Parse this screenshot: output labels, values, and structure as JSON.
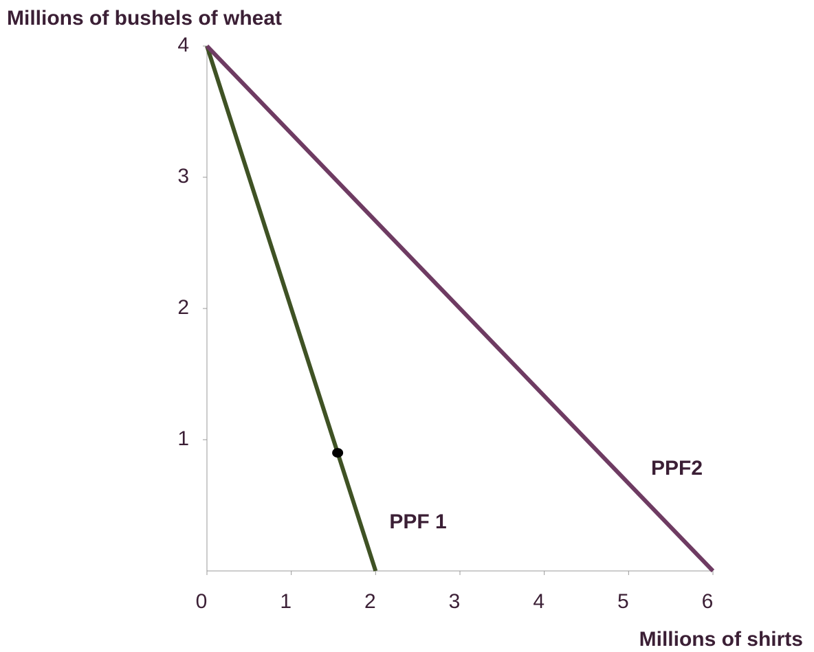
{
  "chart_data": {
    "type": "line",
    "x_label": "Millions of shirts",
    "y_label": "Millions of bushels of wheat",
    "series": [
      {
        "name": "PPF 1",
        "color": "#3f5224",
        "x": [
          0,
          2
        ],
        "values": [
          4,
          0
        ]
      },
      {
        "name": "PPF2",
        "color": "#6e3b62",
        "x": [
          0,
          6
        ],
        "values": [
          4,
          0
        ]
      }
    ],
    "points": [
      {
        "x": 1.55,
        "y": 0.9,
        "color": "#000000"
      }
    ],
    "xlim": [
      0,
      6
    ],
    "xticks": [
      0,
      1,
      2,
      3,
      4,
      5,
      6
    ],
    "ylim": [
      0,
      4
    ],
    "yticks": [
      1,
      2,
      3,
      4
    ],
    "grid": false
  }
}
